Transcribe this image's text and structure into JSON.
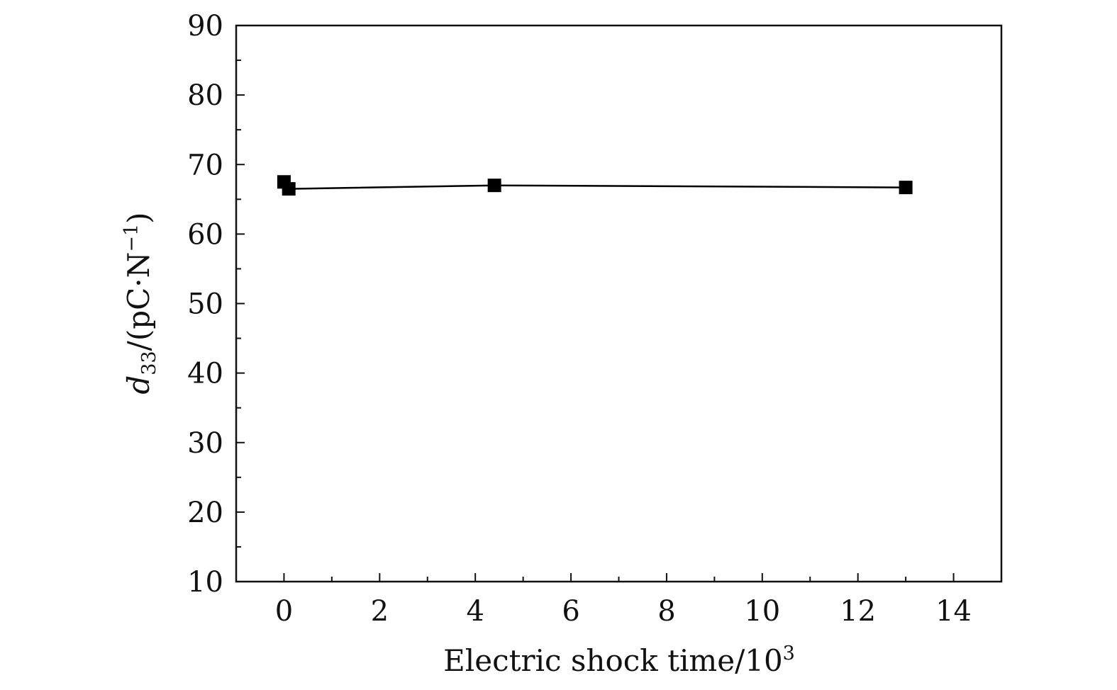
{
  "chart_data": {
    "type": "line",
    "title": "",
    "xlabel": "Electric shock time/10",
    "xlabel_sup": "3",
    "ylabel": {
      "symbol": "d",
      "subscript": "33",
      "unit_prefix": "/(pC·N",
      "unit_sup": "−1",
      "unit_suffix": ")"
    },
    "xlim": [
      -1,
      15
    ],
    "ylim": [
      10,
      90
    ],
    "xticks": [
      0,
      2,
      4,
      6,
      8,
      10,
      12,
      14
    ],
    "xtick_labels": [
      "0",
      "2",
      "4",
      "6",
      "8",
      "10",
      "12",
      "14"
    ],
    "yticks": [
      10,
      20,
      30,
      40,
      50,
      60,
      70,
      80,
      90
    ],
    "ytick_labels": [
      "10",
      "20",
      "30",
      "40",
      "50",
      "60",
      "70",
      "80",
      "90"
    ],
    "grid": false,
    "legend": "none",
    "series": [
      {
        "marker": "filled-square",
        "color": "#000000",
        "points": [
          {
            "x": 0.0,
            "y": 67.5
          },
          {
            "x": 0.1,
            "y": 66.5
          },
          {
            "x": 4.4,
            "y": 67.0
          },
          {
            "x": 13.0,
            "y": 66.7
          }
        ]
      }
    ]
  }
}
